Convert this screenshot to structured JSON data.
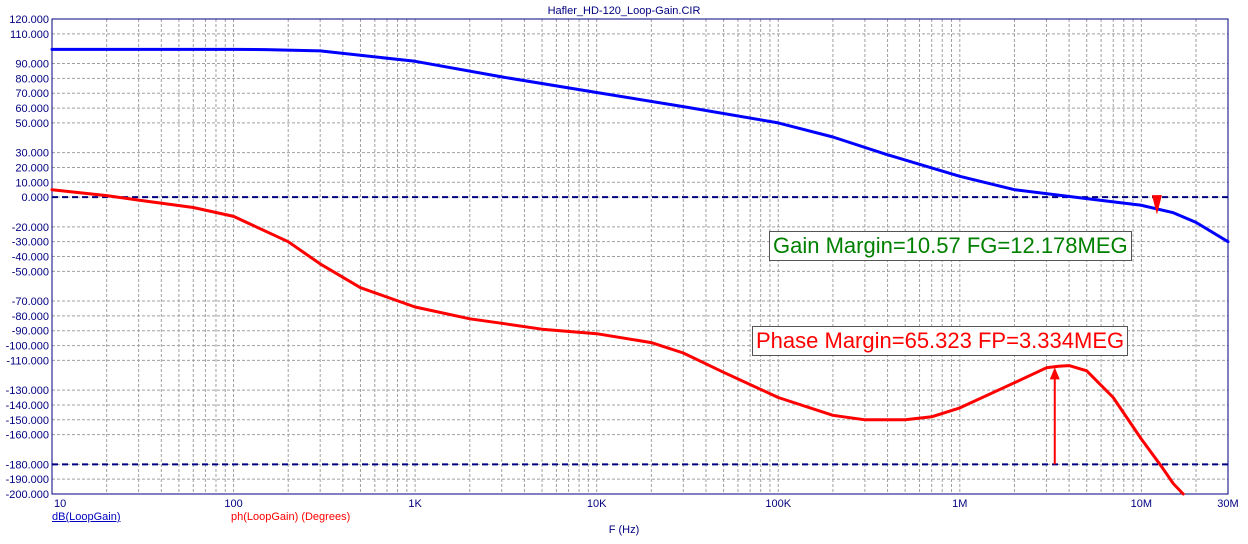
{
  "chart_data": {
    "type": "line",
    "title": "Hafler_HD-120_Loop-Gain.CIR",
    "xlabel": "F (Hz)",
    "xscale": "log",
    "xlim": [
      10,
      30000000
    ],
    "ylim": [
      -200,
      120
    ],
    "grid": true,
    "x_ticks": [
      {
        "v": 10,
        "t": "10"
      },
      {
        "v": 100,
        "t": "100"
      },
      {
        "v": 1000,
        "t": "1K"
      },
      {
        "v": 10000,
        "t": "10K"
      },
      {
        "v": 100000,
        "t": "100K"
      },
      {
        "v": 1000000,
        "t": "1M"
      },
      {
        "v": 10000000,
        "t": "10M"
      },
      {
        "v": 30000000,
        "t": "30M"
      }
    ],
    "y_ticks": [
      {
        "v": 120,
        "t": "120.000"
      },
      {
        "v": 110,
        "t": "110.000"
      },
      {
        "v": 90,
        "t": "90.000"
      },
      {
        "v": 80,
        "t": "80.000"
      },
      {
        "v": 70,
        "t": "70.000"
      },
      {
        "v": 60,
        "t": "60.000"
      },
      {
        "v": 50,
        "t": "50.000"
      },
      {
        "v": 30,
        "t": "30.000"
      },
      {
        "v": 20,
        "t": "20.000"
      },
      {
        "v": 10,
        "t": "10.000"
      },
      {
        "v": 0,
        "t": "0.000"
      },
      {
        "v": -20,
        "t": "-20.000"
      },
      {
        "v": -30,
        "t": "-30.000"
      },
      {
        "v": -40,
        "t": "-40.000"
      },
      {
        "v": -50,
        "t": "-50.000"
      },
      {
        "v": -70,
        "t": "-70.000"
      },
      {
        "v": -80,
        "t": "-80.000"
      },
      {
        "v": -90,
        "t": "-90.000"
      },
      {
        "v": -100,
        "t": "-100.000"
      },
      {
        "v": -110,
        "t": "-110.000"
      },
      {
        "v": -130,
        "t": "-130.000"
      },
      {
        "v": -140,
        "t": "-140.000"
      },
      {
        "v": -150,
        "t": "-150.000"
      },
      {
        "v": -160,
        "t": "-160.000"
      },
      {
        "v": -180,
        "t": "-180.000"
      },
      {
        "v": -190,
        "t": "-190.000"
      },
      {
        "v": -200,
        "t": "-200.000"
      }
    ],
    "series": [
      {
        "name": "dB(LoopGain)",
        "color": "#0000ff",
        "x": [
          10,
          30,
          100,
          150,
          300,
          1000,
          3000,
          10000,
          30000,
          100000,
          200000,
          400000,
          1000000,
          2000000,
          5000000,
          10000000,
          15000000,
          20000000,
          30000000
        ],
        "y": [
          99.5,
          99.5,
          99.5,
          99.4,
          98.5,
          91.5,
          81.0,
          70.5,
          61.0,
          50.0,
          40.5,
          28.5,
          14.0,
          5.0,
          -1.0,
          -5.5,
          -10.5,
          -17.0,
          -30.0
        ]
      },
      {
        "name": "ph(LoopGain) (Degrees)",
        "color": "#ff0000",
        "x": [
          10,
          20,
          30,
          60,
          100,
          200,
          300,
          500,
          1000,
          2000,
          3000,
          5000,
          10000,
          20000,
          30000,
          50000,
          100000,
          200000,
          300000,
          500000,
          700000,
          1000000,
          2000000,
          3000000,
          3500000,
          4000000,
          5000000,
          7000000,
          10000000,
          13000000,
          15000000,
          17000000
        ],
        "y": [
          5,
          1,
          -2,
          -7,
          -13,
          -30,
          -45,
          -61,
          -74,
          -82,
          -85,
          -89,
          -92,
          -98,
          -105,
          -118,
          -135,
          -147,
          -150,
          -150,
          -148,
          -142,
          -125,
          -115,
          -114,
          -113.5,
          -117,
          -135,
          -163,
          -182,
          -193,
          -200
        ]
      }
    ],
    "reference_lines": [
      {
        "y": 0,
        "color": "#000080"
      },
      {
        "y": -180,
        "color": "#000080"
      }
    ],
    "markers": [
      {
        "type": "arrow-down",
        "x": 12178000,
        "y": -11,
        "color": "#ff0000"
      },
      {
        "type": "arrow-up",
        "x": 3334000,
        "y_from": -180,
        "y_to": -114.7,
        "color": "#ff0000"
      }
    ],
    "annotations": {
      "gain": "Gain Margin=10.57 FG=12.178MEG",
      "phase": "Phase Margin=65.323 FP=3.334MEG"
    },
    "legend": [
      "dB(LoopGain)",
      "ph(LoopGain) (Degrees)"
    ],
    "colors": {
      "grid": "#a0a0a0",
      "axis_text": "#000080",
      "frame": "#000080"
    }
  }
}
